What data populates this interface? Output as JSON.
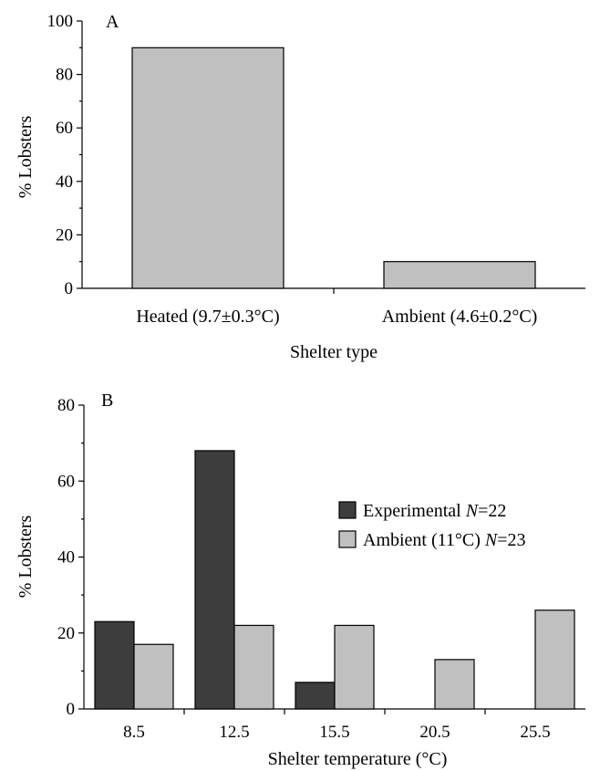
{
  "chart_data": [
    {
      "type": "bar",
      "panel_label": "A",
      "categories": [
        "Heated (9.7±0.3°C)",
        "Ambient (4.6±0.2°C)"
      ],
      "values": [
        90,
        10
      ],
      "xlabel": "Shelter type",
      "ylabel": "% Lobsters",
      "ylim": [
        0,
        100
      ],
      "yticks": [
        "0",
        "20",
        "40",
        "60",
        "80",
        "100"
      ],
      "bar_color": "#c0c0c0",
      "grid": false
    },
    {
      "type": "bar",
      "panel_label": "B",
      "categories": [
        "8.5",
        "12.5",
        "15.5",
        "20.5",
        "25.5"
      ],
      "series": [
        {
          "name": "Experimental N=22",
          "legend_text": "Experimental ",
          "legend_italic": "N",
          "legend_suffix": "=22",
          "values": [
            23,
            68,
            7,
            0,
            0
          ],
          "color": "#3d3d3d"
        },
        {
          "name": "Ambient (11°C) N=23",
          "legend_text": "Ambient (11°C) ",
          "legend_italic": "N",
          "legend_suffix": "=23",
          "values": [
            17,
            22,
            22,
            13,
            26
          ],
          "color": "#c0c0c0"
        }
      ],
      "xlabel": "Shelter temperature (°C)",
      "ylabel": "% Lobsters",
      "ylim": [
        0,
        80
      ],
      "yticks": [
        "0",
        "20",
        "40",
        "60",
        "80"
      ],
      "legend_position": "right",
      "grid": false
    }
  ]
}
